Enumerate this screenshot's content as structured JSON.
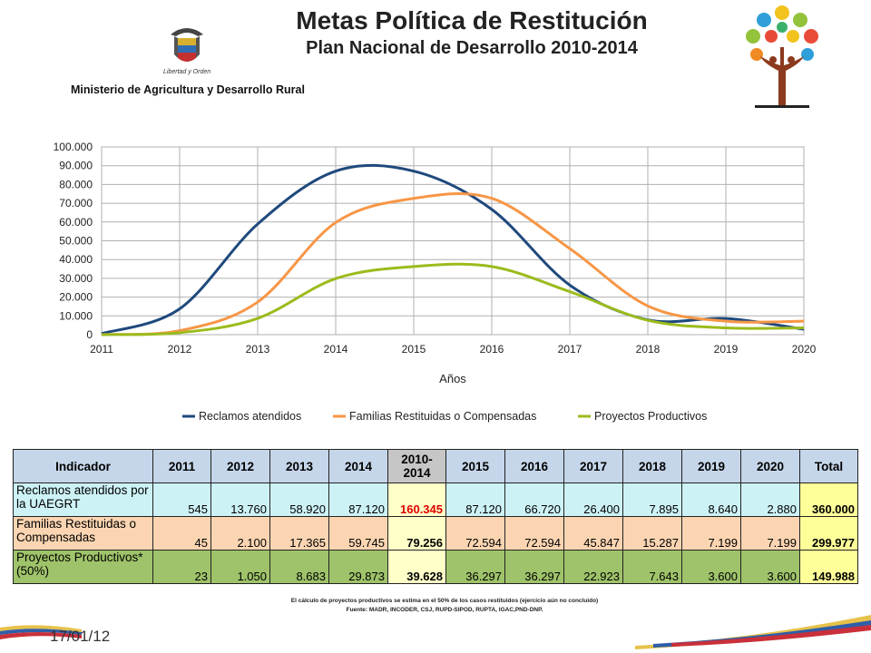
{
  "header": {
    "title": "Metas Política de Restitución",
    "subtitle": "Plan Nacional de Desarrollo 2010-2014",
    "ministry_name": "Ministerio de Agricultura y Desarrollo Rural",
    "seal_text": "Libertad y Orden"
  },
  "chart_data": {
    "type": "line",
    "x": [
      2011,
      2012,
      2013,
      2014,
      2015,
      2016,
      2017,
      2018,
      2019,
      2020
    ],
    "x_ticks": [
      "2011",
      "2012",
      "2013",
      "2014",
      "2015",
      "2016",
      "2017",
      "2018",
      "2019",
      "2020"
    ],
    "y_ticks": [
      "0",
      "10.000",
      "20.000",
      "30.000",
      "40.000",
      "50.000",
      "60.000",
      "70.000",
      "80.000",
      "90.000",
      "100.000"
    ],
    "ylim": [
      0,
      100000
    ],
    "xlabel": "Años",
    "ylabel": "",
    "grid": true,
    "legend_position": "bottom",
    "series": [
      {
        "name": "Reclamos atendidos",
        "color": "#1f497d",
        "values": [
          545,
          13760,
          58920,
          87120,
          87120,
          66720,
          26400,
          7895,
          8640,
          2880
        ]
      },
      {
        "name": "Familias Restituidas o Compensadas",
        "color": "#f79646",
        "values": [
          45,
          2100,
          17365,
          59745,
          72594,
          72594,
          45847,
          15287,
          7199,
          7199
        ]
      },
      {
        "name": "Proyectos Productivos",
        "color": "#9bbb1c",
        "values": [
          23,
          1050,
          8683,
          29873,
          36297,
          36297,
          22923,
          7643,
          3600,
          3600
        ]
      }
    ]
  },
  "table": {
    "headers": [
      "Indicador",
      "2011",
      "2012",
      "2013",
      "2014",
      "2010-2014",
      "2015",
      "2016",
      "2017",
      "2018",
      "2019",
      "2020",
      "Total"
    ],
    "rows": [
      {
        "label": "Reclamos atendidos por la UAEGRT",
        "cells": [
          "545",
          "13.760",
          "58.920",
          "87.120",
          "160.345",
          "87.120",
          "66.720",
          "26.400",
          "7.895",
          "8.640",
          "2.880",
          "360.000"
        ]
      },
      {
        "label": "Familias Restituidas o Compensadas",
        "cells": [
          "45",
          "2.100",
          "17.365",
          "59.745",
          "79.256",
          "72.594",
          "72.594",
          "45.847",
          "15.287",
          "7.199",
          "7.199",
          "299.977"
        ]
      },
      {
        "label": "Proyectos Productivos* (50%)",
        "cells": [
          "23",
          "1.050",
          "8.683",
          "29.873",
          "39.628",
          "36.297",
          "36.297",
          "22.923",
          "7.643",
          "3.600",
          "3.600",
          "149.988"
        ]
      }
    ]
  },
  "footnote": {
    "line1": "El cálculo de proyectos productivos se estima en el 50% de los casos restituidos (ejercicio aún no concluido)",
    "line2": "Fuente: MADR, INCODER, CSJ, RUPD-SIPOD, RUPTA, IGAC,PND-DNP."
  },
  "footer": {
    "date": "17/01/12"
  }
}
